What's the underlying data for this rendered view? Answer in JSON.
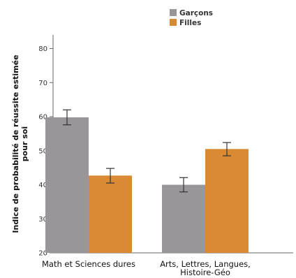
{
  "chart_data": {
    "type": "bar",
    "ylabel": "Indice de probabilité de réussite estimée pour soi",
    "ylabel_lines": [
      "Indice de probabilité de réussite estimée",
      "pour soi"
    ],
    "ylim": [
      20,
      84
    ],
    "yticks": [
      20,
      30,
      40,
      50,
      60,
      70,
      80
    ],
    "grid": false,
    "legend_position": "top-right",
    "categories": [
      "Math et Sciences dures",
      "Arts, Lettres, Langues, Histoire-Géo"
    ],
    "category_lines": [
      [
        "Math et Sciences dures"
      ],
      [
        "Arts, Lettres, Langues,",
        "Histoire-Géo"
      ]
    ],
    "series": [
      {
        "name": "Garçons",
        "color": "#9a9598",
        "values": [
          59.8,
          40.0
        ],
        "err_low": [
          57.6,
          37.9
        ],
        "err_high": [
          62.0,
          42.1
        ]
      },
      {
        "name": "Filles",
        "color": "#d98a33",
        "values": [
          42.7,
          50.5
        ],
        "err_low": [
          40.5,
          48.5
        ],
        "err_high": [
          44.8,
          52.4
        ]
      }
    ]
  }
}
